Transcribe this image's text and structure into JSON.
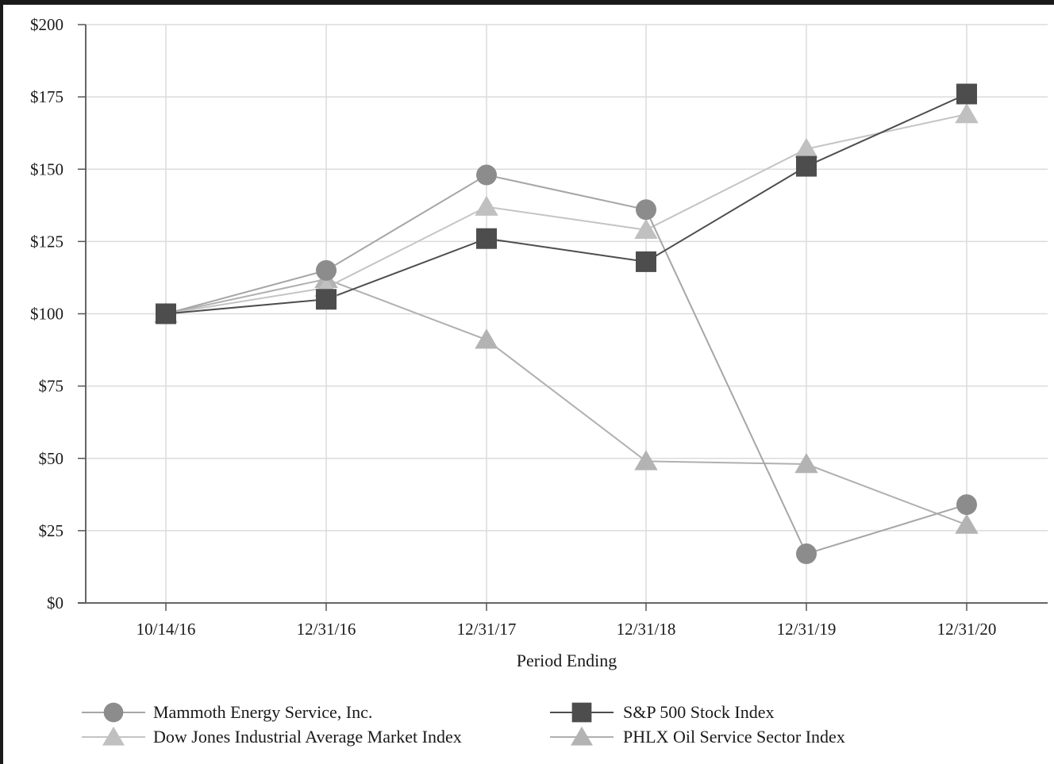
{
  "chart_data": {
    "type": "line",
    "title": "",
    "xlabel": "Period Ending",
    "ylabel": "",
    "categories": [
      "10/14/16",
      "12/31/16",
      "12/31/17",
      "12/31/18",
      "12/31/19",
      "12/31/20"
    ],
    "ylim": [
      0,
      200
    ],
    "yticks": [
      0,
      25,
      50,
      75,
      100,
      125,
      150,
      175,
      200
    ],
    "ytick_labels": [
      "$0",
      "$25",
      "$50",
      "$75",
      "$100",
      "$125",
      "$150",
      "$175",
      "$200"
    ],
    "grid": true,
    "legend_position": "bottom",
    "series": [
      {
        "name": "Mammoth Energy Service, Inc.",
        "values": [
          100,
          115,
          148,
          136,
          17,
          34
        ],
        "marker": "circle",
        "line_color": "#a6a6a6",
        "marker_color": "#8c8c8c"
      },
      {
        "name": "S&P 500 Stock Index",
        "values": [
          100,
          105,
          126,
          118,
          151,
          176
        ],
        "marker": "square",
        "line_color": "#4d4d4d",
        "marker_color": "#4d4d4d"
      },
      {
        "name": "Dow Jones Industrial Average Market Index",
        "values": [
          100,
          109,
          137,
          129,
          157,
          169
        ],
        "marker": "triangle",
        "line_color": "#c4c4c4",
        "marker_color": "#c0c0c0"
      },
      {
        "name": "PHLX Oil Service Sector Index",
        "values": [
          100,
          112,
          91,
          49,
          48,
          27
        ],
        "marker": "triangle",
        "line_color": "#b0b0b0",
        "marker_color": "#b3b3b3"
      }
    ]
  }
}
